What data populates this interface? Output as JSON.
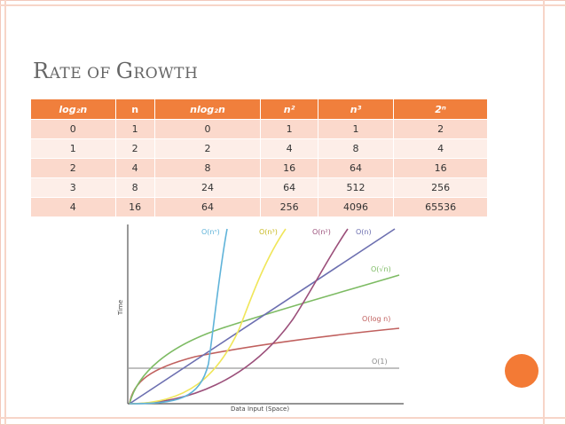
{
  "slide": {
    "title_first": "R",
    "title_rest": "ATE OF ",
    "title_g": "G",
    "title_end": "ROWTH"
  },
  "table": {
    "headers": [
      "log₂n",
      "n",
      "nlog₂n",
      "n²",
      "n³",
      "2ⁿ"
    ],
    "rows": [
      [
        "0",
        "1",
        "0",
        "1",
        "1",
        "2"
      ],
      [
        "1",
        "2",
        "2",
        "4",
        "8",
        "4"
      ],
      [
        "2",
        "4",
        "8",
        "16",
        "64",
        "16"
      ],
      [
        "3",
        "8",
        "24",
        "64",
        "512",
        "256"
      ],
      [
        "4",
        "16",
        "64",
        "256",
        "4096",
        "65536"
      ]
    ]
  },
  "chart_data": {
    "type": "line",
    "xlabel": "Data Input (Space)",
    "ylabel": "Time",
    "series": [
      {
        "name": "O(nⁿ)",
        "color": "#5fb3d9"
      },
      {
        "name": "O(n³)",
        "color": "#f0e65a"
      },
      {
        "name": "O(n²)",
        "color": "#9b4f7a"
      },
      {
        "name": "O(n)",
        "color": "#6c6fb0"
      },
      {
        "name": "O(√n)",
        "color": "#7dbb63"
      },
      {
        "name": "O(log n)",
        "color": "#c0605e"
      },
      {
        "name": "O(1)",
        "color": "#9a9a9a"
      }
    ]
  },
  "colors": {
    "accent": "#f07f3c",
    "row_dark": "#fbd9cc",
    "row_light": "#fdeee8"
  }
}
